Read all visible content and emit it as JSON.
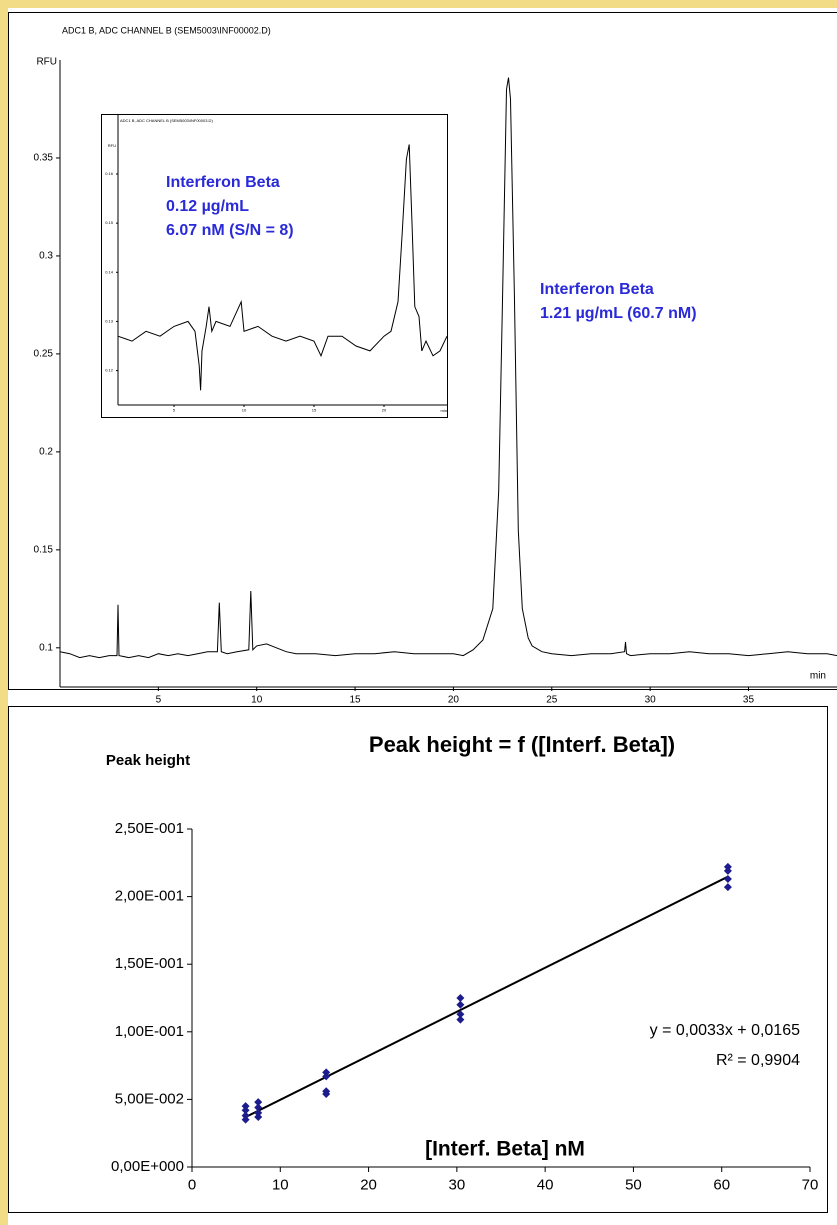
{
  "chart_data": [
    {
      "type": "line",
      "title": "ADC1 B, ADC CHANNEL B (SEM5003\\INF00002.D)",
      "y_label": "RFU",
      "x_label": "min",
      "xlim": [
        0,
        39.5
      ],
      "xticks": [
        5,
        10,
        15,
        20,
        25,
        30,
        35
      ],
      "ylim": [
        0.08,
        0.4
      ],
      "yticks": [
        0.1,
        0.15,
        0.2,
        0.25,
        0.3,
        0.35
      ],
      "color": "#000000",
      "x": [
        0,
        0.5,
        1,
        1.5,
        2,
        2.5,
        2.9,
        2.95,
        3.0,
        3.5,
        4,
        4.5,
        5,
        5.5,
        6,
        6.5,
        7,
        7.5,
        8,
        8.1,
        8.2,
        8.5,
        9,
        9.6,
        9.7,
        9.8,
        10,
        10.5,
        11,
        11.5,
        12,
        13,
        14,
        15,
        16,
        17,
        18,
        19,
        20,
        20.5,
        21,
        21.5,
        22,
        22.3,
        22.5,
        22.7,
        22.8,
        22.9,
        23.1,
        23.3,
        23.5,
        23.8,
        24,
        24.5,
        25,
        26,
        27,
        28,
        28.7,
        28.75,
        28.8,
        29,
        30,
        31,
        32,
        33,
        34,
        35,
        36,
        37,
        38,
        39,
        39.5
      ],
      "values": [
        0.098,
        0.097,
        0.095,
        0.096,
        0.095,
        0.096,
        0.096,
        0.122,
        0.096,
        0.095,
        0.096,
        0.095,
        0.097,
        0.096,
        0.097,
        0.096,
        0.097,
        0.098,
        0.098,
        0.123,
        0.098,
        0.097,
        0.098,
        0.099,
        0.129,
        0.099,
        0.101,
        0.102,
        0.1,
        0.098,
        0.097,
        0.097,
        0.096,
        0.097,
        0.097,
        0.098,
        0.097,
        0.097,
        0.097,
        0.096,
        0.099,
        0.104,
        0.12,
        0.18,
        0.28,
        0.385,
        0.391,
        0.38,
        0.28,
        0.16,
        0.12,
        0.105,
        0.101,
        0.098,
        0.097,
        0.096,
        0.097,
        0.097,
        0.098,
        0.103,
        0.097,
        0.096,
        0.097,
        0.097,
        0.098,
        0.097,
        0.097,
        0.096,
        0.097,
        0.098,
        0.097,
        0.097,
        0.096
      ],
      "annotations": [
        "Interferon Beta",
        "1.21 µg/mL (60.7 nM)"
      ]
    },
    {
      "type": "line",
      "title": "ADC1 B, ADC CHANNEL B (SEM5003\\INF00003.D)",
      "y_label": "RFU",
      "x_label": "min",
      "xlim": [
        1,
        24.5
      ],
      "xticks": [
        5,
        10,
        15,
        20
      ],
      "ylim": [
        0.113,
        0.172
      ],
      "yticks": [
        0.12,
        0.13,
        0.14,
        0.15,
        0.16
      ],
      "color": "#000000",
      "x": [
        1,
        2,
        3,
        4,
        5,
        6,
        6.5,
        6.8,
        6.9,
        7.0,
        7.3,
        7.5,
        7.7,
        8,
        9,
        9.8,
        10,
        11,
        12,
        13,
        14,
        15,
        15.5,
        16,
        17,
        18,
        19,
        20,
        20.5,
        21,
        21.3,
        21.6,
        21.8,
        22,
        22.2,
        22.5,
        22.7,
        23,
        23.5,
        24,
        24.5
      ],
      "values": [
        0.127,
        0.126,
        0.128,
        0.127,
        0.129,
        0.13,
        0.128,
        0.121,
        0.116,
        0.124,
        0.129,
        0.133,
        0.128,
        0.13,
        0.129,
        0.134,
        0.128,
        0.129,
        0.127,
        0.126,
        0.127,
        0.126,
        0.123,
        0.127,
        0.127,
        0.125,
        0.124,
        0.127,
        0.128,
        0.134,
        0.148,
        0.163,
        0.166,
        0.15,
        0.133,
        0.131,
        0.124,
        0.126,
        0.123,
        0.124,
        0.127
      ],
      "annotations": [
        "Interferon Beta",
        "0.12 µg/mL",
        "6.07 nM (S/N = 8)"
      ]
    },
    {
      "type": "scatter",
      "title": "Peak height = f ([Interf. Beta])",
      "y_label": "Peak height",
      "x_label": "[Interf. Beta] nM",
      "xlim": [
        0,
        70
      ],
      "xticks": [
        0,
        10,
        20,
        30,
        40,
        50,
        60,
        70
      ],
      "ylim": [
        0,
        0.25
      ],
      "yticks": [
        {
          "value": 0,
          "label": "0,00E+000"
        },
        {
          "value": 0.05,
          "label": "5,00E-002"
        },
        {
          "value": 0.1,
          "label": "1,00E-001"
        },
        {
          "value": 0.15,
          "label": "1,50E-001"
        },
        {
          "value": 0.2,
          "label": "2,00E-001"
        },
        {
          "value": 0.25,
          "label": "2,50E-001"
        }
      ],
      "color": "#1c1c8c",
      "x": [
        6.07,
        6.07,
        6.07,
        6.07,
        7.5,
        7.5,
        7.5,
        7.5,
        15.2,
        15.2,
        15.2,
        15.2,
        30.4,
        30.4,
        30.4,
        30.4,
        60.7,
        60.7,
        60.7,
        60.7
      ],
      "values": [
        0.045,
        0.042,
        0.038,
        0.035,
        0.048,
        0.044,
        0.04,
        0.037,
        0.07,
        0.067,
        0.056,
        0.054,
        0.125,
        0.12,
        0.113,
        0.109,
        0.222,
        0.219,
        0.213,
        0.207
      ],
      "annotations": [
        "y = 0,0033x + 0,0165",
        "R² = 0,9904"
      ]
    }
  ]
}
